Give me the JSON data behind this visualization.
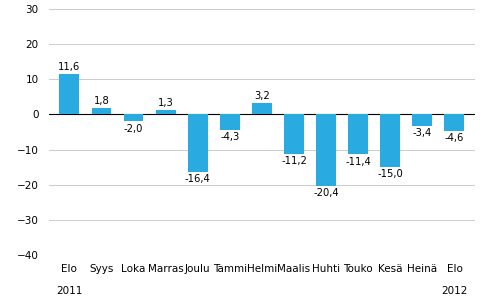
{
  "categories": [
    "Elo",
    "Syys",
    "Loka",
    "Marras",
    "Joulu",
    "Tammi",
    "Helmi",
    "Maalis",
    "Huhti",
    "Touko",
    "Kesä",
    "Heinä",
    "Elo"
  ],
  "values": [
    11.6,
    1.8,
    -2.0,
    1.3,
    -16.4,
    -4.3,
    3.2,
    -11.2,
    -20.4,
    -11.4,
    -15.0,
    -3.4,
    -4.6
  ],
  "bar_color": "#29ABE2",
  "year_label_indices": [
    0,
    12
  ],
  "year_labels": [
    "2011",
    "2012"
  ],
  "ylim": [
    -40,
    30
  ],
  "yticks": [
    -40,
    -30,
    -20,
    -10,
    0,
    10,
    20,
    30
  ],
  "background_color": "#ffffff",
  "grid_color": "#cccccc",
  "tick_fontsize": 7.5,
  "value_fontsize": 7.2,
  "year_fontsize": 7.5
}
